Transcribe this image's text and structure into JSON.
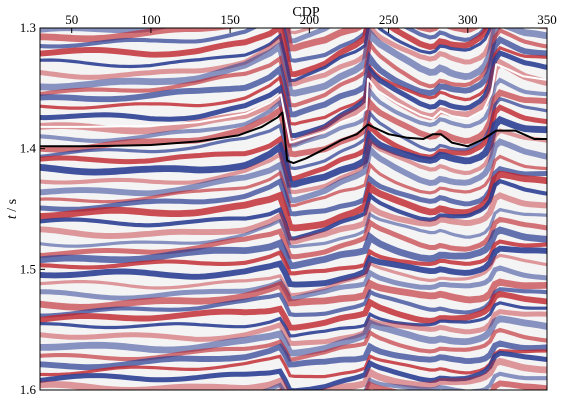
{
  "chart_data": {
    "type": "heatmap",
    "title": "",
    "xlabel": "CDP",
    "ylabel_italic": "t",
    "ylabel_unit": " / s",
    "xlim": [
      30,
      350
    ],
    "ylim": [
      1.3,
      1.6
    ],
    "x_ticks": [
      "50",
      "100",
      "150",
      "200",
      "250",
      "300",
      "350"
    ],
    "x_tick_values": [
      50,
      100,
      150,
      200,
      250,
      300,
      350
    ],
    "y_ticks": [
      "1.3",
      "1.4",
      "1.5",
      "1.6"
    ],
    "y_tick_values": [
      1.3,
      1.4,
      1.5,
      1.6
    ],
    "colormap": {
      "negative": "#2c3f94",
      "zero": "#f4f4f4",
      "positive": "#c0262d"
    },
    "horizons": [
      {
        "color": "#ffffff",
        "points": [
          [
            30,
            1.382
          ],
          [
            60,
            1.382
          ],
          [
            100,
            1.381
          ],
          [
            130,
            1.378
          ],
          [
            160,
            1.371
          ],
          [
            175,
            1.362
          ],
          [
            182,
            1.355
          ],
          [
            188,
            1.395
          ],
          [
            195,
            1.392
          ],
          [
            210,
            1.386
          ],
          [
            220,
            1.378
          ],
          [
            230,
            1.373
          ],
          [
            236,
            1.367
          ],
          [
            237,
            1.342
          ],
          [
            243,
            1.352
          ],
          [
            255,
            1.362
          ],
          [
            270,
            1.372
          ],
          [
            278,
            1.375
          ],
          [
            283,
            1.369
          ],
          [
            290,
            1.373
          ],
          [
            300,
            1.375
          ],
          [
            310,
            1.368
          ],
          [
            315,
            1.354
          ],
          [
            318,
            1.33
          ],
          [
            325,
            1.334
          ],
          [
            335,
            1.34
          ],
          [
            350,
            1.343
          ]
        ]
      },
      {
        "color": "#000000",
        "points": [
          [
            30,
            1.398
          ],
          [
            60,
            1.398
          ],
          [
            100,
            1.397
          ],
          [
            130,
            1.394
          ],
          [
            155,
            1.389
          ],
          [
            170,
            1.382
          ],
          [
            180,
            1.374
          ],
          [
            183,
            1.37
          ],
          [
            186,
            1.41
          ],
          [
            190,
            1.412
          ],
          [
            198,
            1.408
          ],
          [
            210,
            1.4
          ],
          [
            220,
            1.393
          ],
          [
            230,
            1.388
          ],
          [
            237,
            1.38
          ],
          [
            240,
            1.382
          ],
          [
            250,
            1.388
          ],
          [
            262,
            1.391
          ],
          [
            272,
            1.392
          ],
          [
            278,
            1.388
          ],
          [
            283,
            1.388
          ],
          [
            290,
            1.395
          ],
          [
            300,
            1.398
          ],
          [
            310,
            1.392
          ],
          [
            318,
            1.385
          ],
          [
            330,
            1.385
          ],
          [
            342,
            1.392
          ],
          [
            350,
            1.392
          ]
        ]
      }
    ]
  }
}
